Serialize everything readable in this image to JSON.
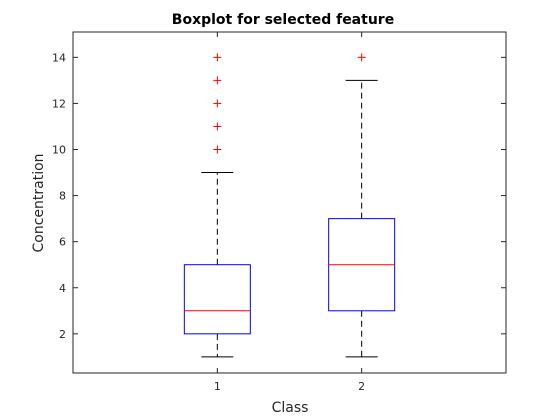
{
  "chart_data": {
    "type": "box",
    "title": "Boxplot for selected feature",
    "xlabel": "Class",
    "ylabel": "Concentration",
    "categories": [
      "1",
      "2"
    ],
    "ylim": [
      0.3,
      15.1
    ],
    "yticks": [
      2,
      4,
      6,
      8,
      10,
      12,
      14
    ],
    "grid": false,
    "legend": "none",
    "boxes": [
      {
        "category": "1",
        "whisker_low": 1,
        "q1": 2,
        "median": 3,
        "q3": 5,
        "whisker_high": 9,
        "outliers": [
          10,
          11,
          12,
          13,
          14
        ]
      },
      {
        "category": "2",
        "whisker_low": 1,
        "q1": 3,
        "median": 5,
        "q3": 7,
        "whisker_high": 13,
        "outliers": [
          14
        ]
      }
    ],
    "colors": {
      "box": "#0000ff",
      "median": "#ff0000",
      "whisker": "#000000",
      "outlier": "#ff0000",
      "axes": "#262626"
    }
  }
}
